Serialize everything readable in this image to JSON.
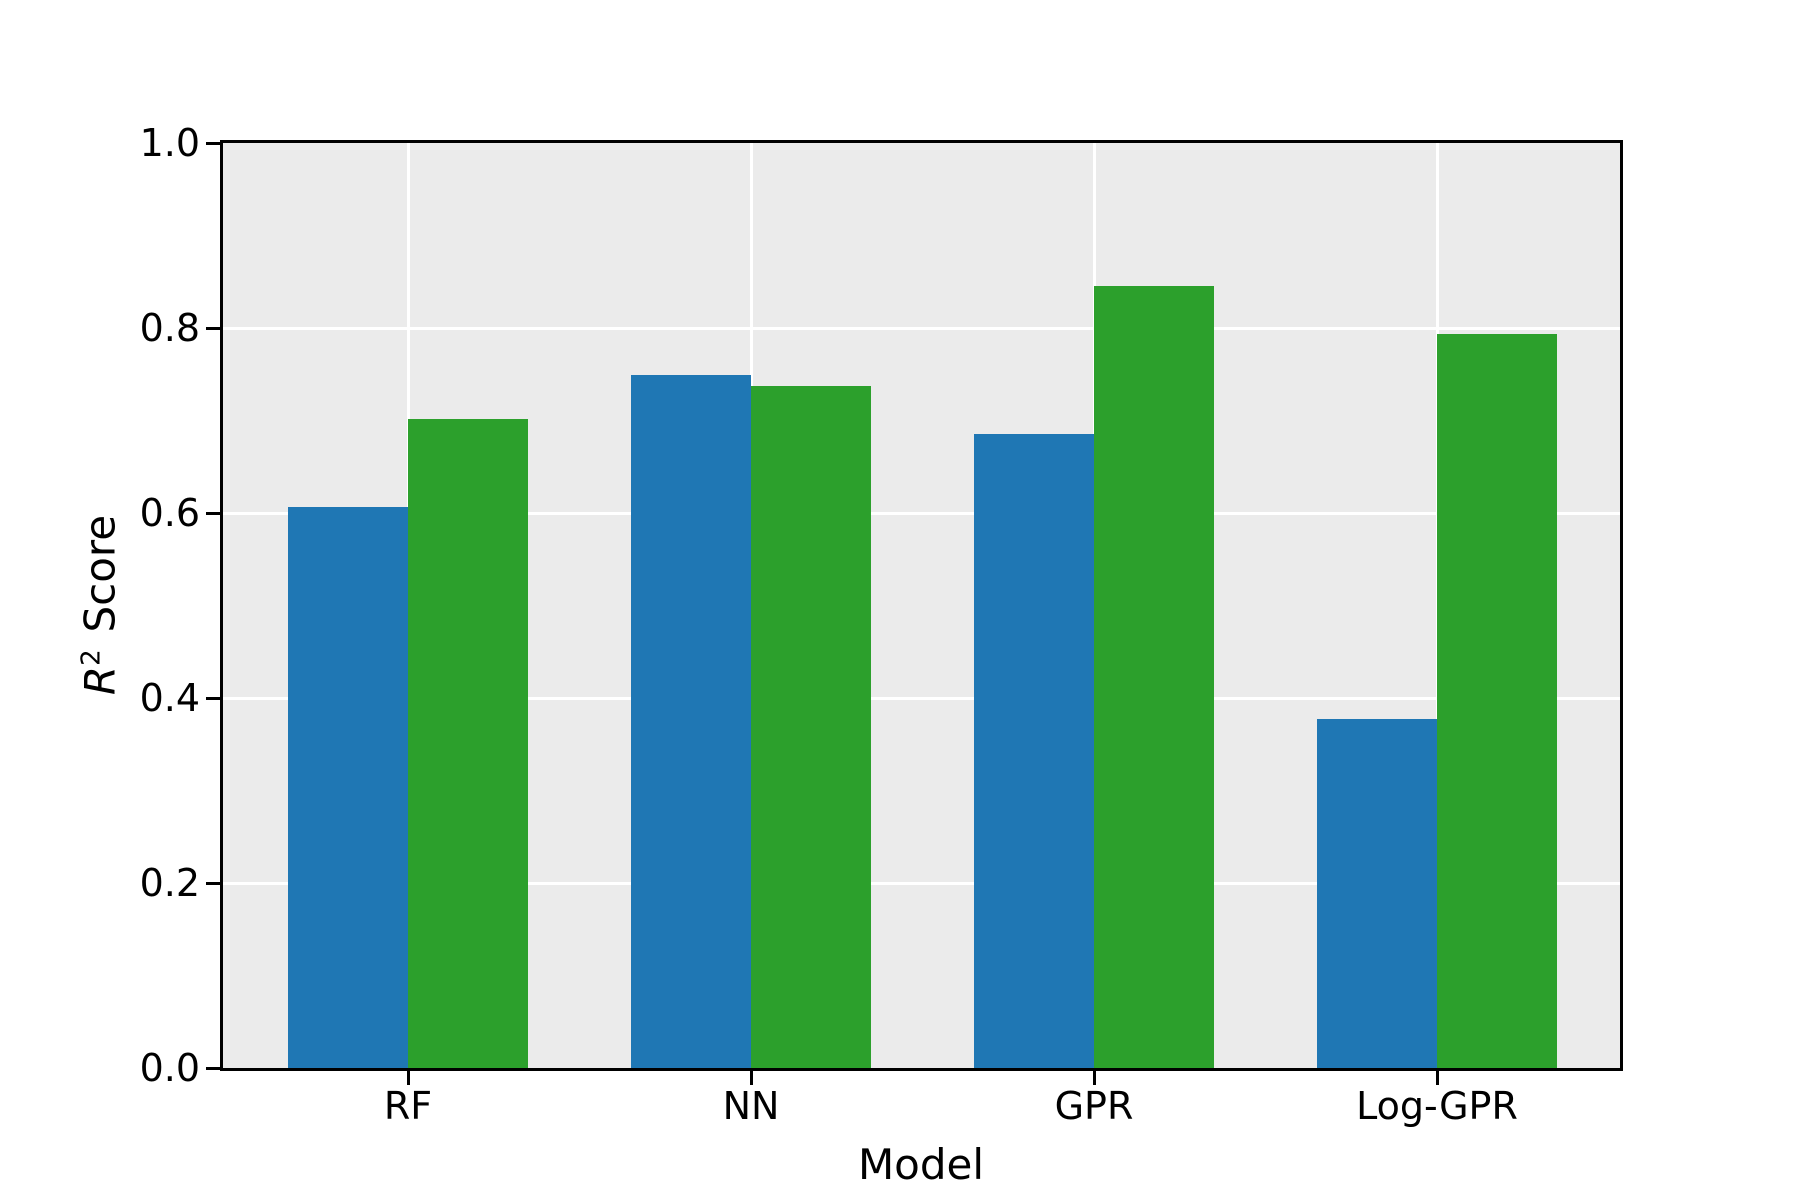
{
  "chart_data": {
    "type": "bar",
    "title": "",
    "xlabel": "Model",
    "ylabel": "R² Score",
    "categories": [
      "RF",
      "NN",
      "GPR",
      "Log-GPR"
    ],
    "series": [
      {
        "name": "series-blue",
        "color": "#1f77b4",
        "values": [
          0.607,
          0.749,
          0.685,
          0.377
        ]
      },
      {
        "name": "series-green",
        "color": "#2ca02c",
        "values": [
          0.702,
          0.737,
          0.845,
          0.793
        ]
      }
    ],
    "ylim": [
      0.0,
      1.0
    ],
    "yticks": [
      0.0,
      0.2,
      0.4,
      0.6,
      0.8,
      1.0
    ],
    "ytick_labels": [
      "0.0",
      "0.2",
      "0.4",
      "0.6",
      "0.8",
      "1.0"
    ],
    "grid": true,
    "grid_axes": "both",
    "legend": "none",
    "plot_bg": "#ebebeb",
    "grid_color": "#ffffff",
    "spine_color": "#000000",
    "text_color": "#000000",
    "figure_bg": "#ffffff"
  },
  "labels": {
    "ylabel_r": "R",
    "ylabel_sup": "2",
    "ylabel_score": "Score",
    "xlabel": "Model"
  }
}
